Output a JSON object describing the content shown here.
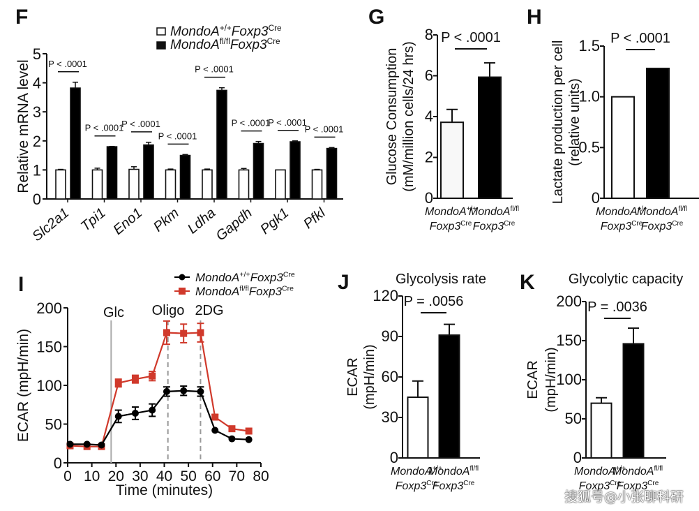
{
  "legend_groups": {
    "wt": {
      "base": "MondoA",
      "sup1": "+/+",
      "mid": "Foxp3",
      "sup2": "Cre"
    },
    "ko": {
      "base": "MondoA",
      "sup1": "fl/fl",
      "mid": "Foxp3",
      "sup2": "Cre"
    }
  },
  "colors": {
    "wt_bar": "#ffffff",
    "ko_bar": "#000000",
    "line_wt": "#000000",
    "line_ko": "#d0392b",
    "vline_glc": "#aaaaaa",
    "vline_dash": "#999999"
  },
  "watermark": "搜狐号@小张聊科研",
  "chart_data": [
    {
      "panel": "F",
      "type": "bar",
      "title": "",
      "ylabel": "Relative mRNA level",
      "xlabel": "",
      "ylim": [
        0,
        5
      ],
      "yticks": [
        "0",
        "1",
        "2",
        "3",
        "4",
        "5"
      ],
      "categories": [
        "Slc2a1",
        "Tpi1",
        "Eno1",
        "Pkm",
        "Ldha",
        "Gapdh",
        "Pgk1",
        "Pfkl"
      ],
      "series": [
        {
          "name": "MondoA+/+Foxp3Cre",
          "values": [
            1.0,
            1.0,
            1.02,
            1.0,
            1.0,
            1.0,
            1.0,
            1.0
          ],
          "errors": [
            0.02,
            0.06,
            0.09,
            0.03,
            0.03,
            0.05,
            0.0,
            0.02
          ]
        },
        {
          "name": "MondoAfl/flFoxp3Cre",
          "values": [
            3.82,
            1.8,
            1.86,
            1.5,
            3.74,
            1.91,
            1.97,
            1.74
          ],
          "errors": [
            0.2,
            0.01,
            0.09,
            0.03,
            0.09,
            0.07,
            0.03,
            0.03
          ]
        }
      ],
      "annotations": [
        "P < .0001",
        "P < .0001",
        "P < .0001",
        "P < .0001",
        "P < .0001",
        "P < .0001",
        "P < .0001",
        "P < .0001"
      ],
      "legend": [
        "MondoA+/+Foxp3Cre",
        "MondoAfl/flFoxp3Cre"
      ],
      "legend_position": "top-right"
    },
    {
      "panel": "G",
      "type": "bar",
      "title": "",
      "ylabel": "Glucose Consumption",
      "ylabel2": "(mM/million cells/24 hrs)",
      "ylim": [
        0,
        8
      ],
      "yticks": [
        "0",
        "2",
        "4",
        "6",
        "8"
      ],
      "categories": [
        "MondoA+/+ Foxp3Cre",
        "MondoAfl/fl Foxp3Cre"
      ],
      "values": [
        3.72,
        5.93
      ],
      "errors": [
        0.63,
        0.7
      ],
      "annotation": "P < .0001"
    },
    {
      "panel": "H",
      "type": "bar",
      "title": "",
      "ylabel": "Lactate production per cell",
      "ylabel2": "(relative units)",
      "ylim": [
        0,
        1.5
      ],
      "yticks": [
        "0",
        "0.5",
        "1.0",
        "1.5"
      ],
      "categories": [
        "MondoA+/+ Foxp3Cre",
        "MondoAfl/fl Foxp3Cre"
      ],
      "values": [
        1.0,
        1.28
      ],
      "errors": [
        0.0,
        0.0
      ],
      "annotation": "P < .0001"
    },
    {
      "panel": "I",
      "type": "line",
      "title": "",
      "ylabel": "ECAR (mpH/min)",
      "xlabel": "Time (minutes)",
      "xlim": [
        0,
        80
      ],
      "ylim": [
        0,
        200
      ],
      "xticks": [
        "0",
        "10",
        "20",
        "30",
        "40",
        "50",
        "60",
        "70",
        "80"
      ],
      "yticks": [
        "0",
        "50",
        "100",
        "150",
        "200"
      ],
      "x": [
        1,
        8,
        14,
        21,
        28,
        35,
        41,
        48,
        55,
        61,
        68,
        75
      ],
      "series": [
        {
          "name": "MondoA+/+Foxp3Cre",
          "values": [
            24,
            24,
            23,
            60,
            64,
            68,
            92,
            93,
            92,
            42,
            31,
            30
          ],
          "errors": [
            0,
            0,
            0,
            8,
            8,
            8,
            6,
            6,
            6,
            0,
            0,
            0
          ]
        },
        {
          "name": "MondoAfl/flFoxp3Cre",
          "values": [
            22,
            21,
            21,
            103,
            108,
            112,
            168,
            167,
            168,
            59,
            44,
            41
          ],
          "errors": [
            0,
            0,
            0,
            5,
            5,
            6,
            15,
            12,
            12,
            3,
            0,
            0
          ]
        }
      ],
      "vlines": [
        {
          "x": 18,
          "label": "Glc",
          "style": "solid"
        },
        {
          "x": 41.5,
          "label": "Oligo",
          "style": "dashed"
        },
        {
          "x": 55,
          "label": "2DG",
          "style": "dashed"
        }
      ],
      "legend": [
        "MondoA+/+Foxp3Cre",
        "MondoAfl/flFoxp3Cre"
      ],
      "legend_position": "top-right"
    },
    {
      "panel": "J",
      "type": "bar",
      "title": "Glycolysis rate",
      "ylabel": "ECAR",
      "ylabel2": "(mpH/min)",
      "ylim": [
        0,
        120
      ],
      "yticks": [
        "0",
        "30",
        "60",
        "90",
        "120"
      ],
      "categories": [
        "MondoA+/+ Foxp3Cre",
        "MondoAfl/fl Foxp3Cre"
      ],
      "values": [
        45,
        91
      ],
      "errors": [
        12,
        8
      ],
      "annotation": "P = .0056"
    },
    {
      "panel": "K",
      "type": "bar",
      "title": "Glycolytic capacity",
      "ylabel": "ECAR",
      "ylabel2": "(mpH/min)",
      "ylim": [
        0,
        200
      ],
      "yticks": [
        "0",
        "50",
        "100",
        "150",
        "200"
      ],
      "categories": [
        "MondoA+/+ Foxp3Cre",
        "MondoAfl/fl Foxp3Cre"
      ],
      "values": [
        70,
        146
      ],
      "errors": [
        7,
        20
      ],
      "annotation": "P = .0036"
    }
  ]
}
